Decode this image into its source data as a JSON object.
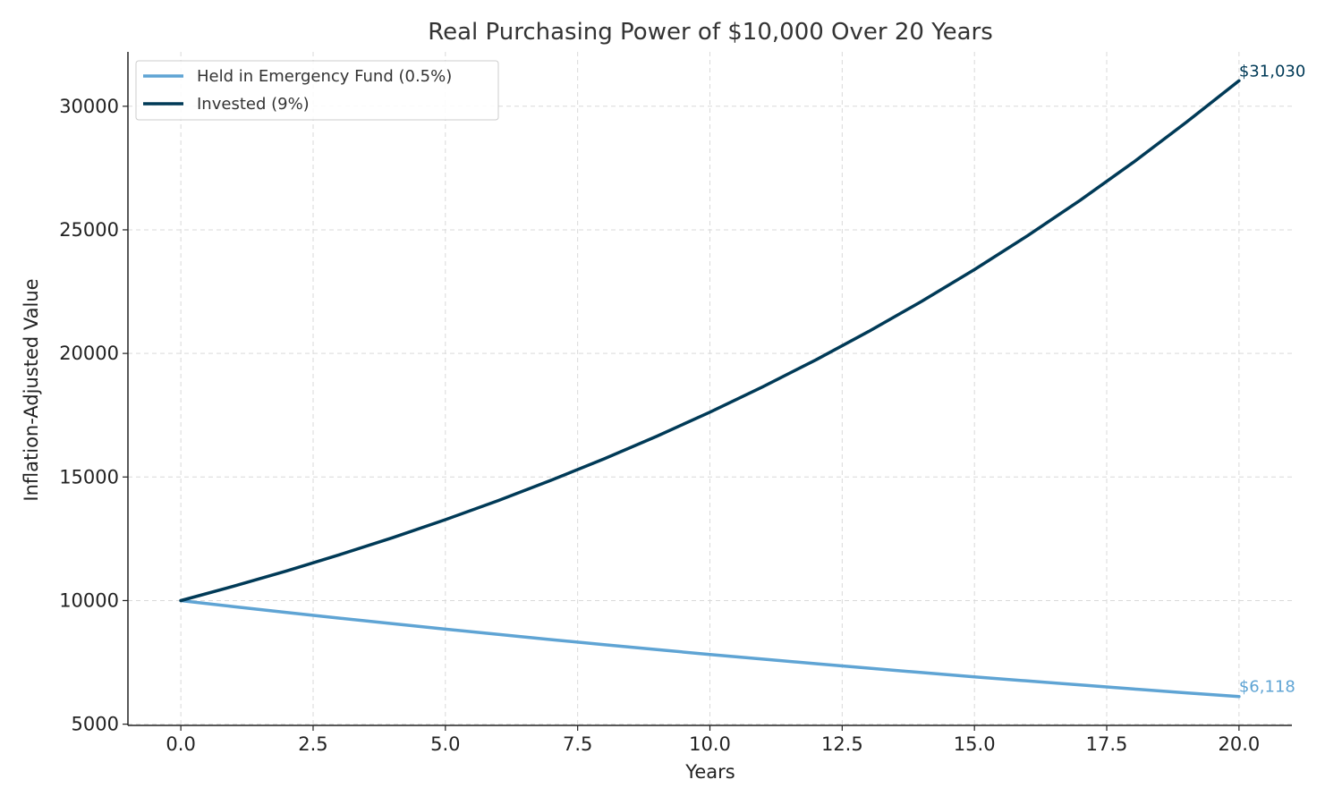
{
  "chart_data": {
    "type": "line",
    "title": "Real Purchasing Power of $10,000 Over 20 Years",
    "xlabel": "Years",
    "ylabel": "Inflation-Adjusted Value",
    "xlim": [
      -1,
      21
    ],
    "ylim": [
      4950,
      32200
    ],
    "xticks": [
      0,
      2.5,
      5,
      7.5,
      10,
      12.5,
      15,
      17.5,
      20
    ],
    "xtick_labels": [
      "0.0",
      "2.5",
      "5.0",
      "7.5",
      "10.0",
      "12.5",
      "15.0",
      "17.5",
      "20.0"
    ],
    "yticks": [
      5000,
      10000,
      15000,
      20000,
      25000,
      30000
    ],
    "ytick_labels": [
      "5000",
      "10000",
      "15000",
      "20000",
      "25000",
      "30000"
    ],
    "grid": true,
    "legend_position": "top-left",
    "x": [
      0,
      1,
      2,
      3,
      4,
      5,
      6,
      7,
      8,
      9,
      10,
      11,
      12,
      13,
      14,
      15,
      16,
      17,
      18,
      19,
      20
    ],
    "series": [
      {
        "name": "Held in Emergency Fund (0.5%)",
        "color": "#5fa4d4",
        "values": [
          10000,
          9757,
          9521,
          9290,
          9064,
          8844,
          8629,
          8420,
          8215,
          8016,
          7821,
          7631,
          7446,
          7265,
          7089,
          6916,
          6748,
          6584,
          6424,
          6268,
          6118
        ],
        "end_label": "$6,118"
      },
      {
        "name": "Invested (9%)",
        "color": "#003a57",
        "values": [
          10000,
          10583,
          11200,
          11853,
          12544,
          13275,
          14049,
          14868,
          15734,
          16652,
          17622,
          18650,
          19737,
          20887,
          22105,
          23393,
          24757,
          26200,
          27727,
          29343,
          31030
        ],
        "end_label": "$31,030"
      }
    ]
  }
}
